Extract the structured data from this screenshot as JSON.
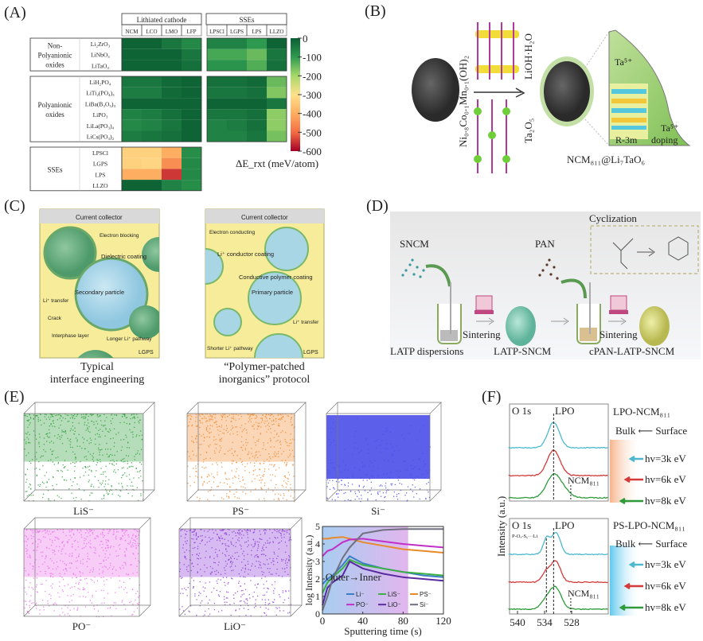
{
  "panels": {
    "A": {
      "label": "(A)",
      "col_groups": [
        "Lithiated cathode",
        "SSEs"
      ],
      "columns": [
        "NCM",
        "LCO",
        "LMO",
        "LFP",
        "LPSCl",
        "LGPS",
        "LPS",
        "LLZO"
      ],
      "row_groups": [
        {
          "name_lines": [
            "Non-",
            "Polyanionic",
            "oxides"
          ],
          "rows": [
            "Li₂ZrO₃",
            "LiNbO₃",
            "LiTaO₃"
          ]
        },
        {
          "name_lines": [
            "Polyanionic",
            "oxides"
          ],
          "rows": [
            "LiH₂PO₄",
            "LiTi₂(PO₄)₃",
            "LiBa(B₃O₅)₃",
            "LiPO₃",
            "LiLa(PO₃)₄",
            "LiCs(PO₃)₂"
          ]
        },
        {
          "name_lines": [
            "SSEs"
          ],
          "rows": [
            "LPSCl",
            "LGPS",
            "LPS",
            "LLZO"
          ]
        }
      ],
      "colorbar_ticks": [
        "0",
        "-100",
        "-200",
        "-300",
        "-400",
        "-500",
        "-600"
      ],
      "colorbar_label": "ΔE_rxt (meV/atom)",
      "colors": [
        "#0b5e33",
        "#2e9a4f",
        "#a6d96a",
        "#fee08b",
        "#fdae61",
        "#f46d43",
        "#a50026"
      ]
    },
    "B": {
      "label": "(B)",
      "precursor": "Ni₀.₈Co₀.₁Mn₀.₁(OH)₂",
      "reagent_top": "LiOH·H₂O",
      "reagent_bottom": "Ta₂O₅",
      "inset_labels": [
        "Ta⁵⁺",
        "R-3m",
        "Ta⁵⁺",
        "doping"
      ],
      "product": "NCM₈₁₁@Li₇TaO₆"
    },
    "C": {
      "label": "(C)",
      "left": {
        "header": "Current collector",
        "labels": [
          "Electron blocking",
          "Dielectric coating",
          "Secondary particle",
          "Li⁺ transfer",
          "Crack",
          "Interphase layer",
          "Longer Li⁺ pathway",
          "LGPS"
        ],
        "caption": [
          "Typical",
          "interface engineering"
        ]
      },
      "right": {
        "header": "Current collector",
        "labels": [
          "Electron conducting",
          "Li⁺ conductor coating",
          "Conductive polymer coating",
          "Primary particle",
          "Li⁺ transfer",
          "Shorter Li⁺ pathway",
          "LGPS"
        ],
        "caption": [
          "“Polymer-patched",
          "inorganics” protocol"
        ]
      }
    },
    "D": {
      "label": "(D)",
      "labels": {
        "sncm": "SNCM",
        "pan": "PAN",
        "cyclization": "Cyclization",
        "sintering1": "Sintering",
        "sintering2": "Sintering",
        "latp_disp": "LATP dispersions",
        "latp_sncm": "LATP-SNCM",
        "cpan": "cPAN-LATP-SNCM"
      }
    },
    "E": {
      "label": "(E)",
      "cubes": [
        {
          "name": "LiS⁻",
          "color": "#2e9e3a"
        },
        {
          "name": "PS⁻",
          "color": "#f08a30"
        },
        {
          "name": "Si⁻",
          "color": "#4a4ee8"
        },
        {
          "name": "PO⁻",
          "color": "#e86ee8"
        },
        {
          "name": "LiO⁻",
          "color": "#8a3ad6"
        }
      ]
    },
    "F": {
      "label": "(F)",
      "ylabel": "Intensity (a.u.)",
      "xticks": [
        "540",
        "534",
        "528"
      ],
      "top": {
        "core": "O 1s",
        "peak": "LPO",
        "peak2": "NCM₈₁₁",
        "sample": "LPO-NCM₈₁₁",
        "direction": "Bulk ⟵ Surface",
        "energies": [
          "hv=3k eV",
          "hv=6k eV",
          "hv=8k eV"
        ]
      },
      "bottom": {
        "core": "O 1s",
        "peak": "LPO",
        "sub_peak": "P-Oₓ-Sᵧ···Li",
        "peak2": "NCM₈₁₁",
        "sample": "PS-LPO-NCM₈₁₁",
        "direction": "Bulk ⟵ Surface",
        "energies": [
          "hv=3k eV",
          "hv=6k eV",
          "hv=8k eV"
        ]
      },
      "trace_colors": [
        "#4fb8cf",
        "#d43a3a",
        "#2e9a3a"
      ]
    }
  },
  "chart_data": [
    {
      "type": "heatmap",
      "title": "",
      "xlabel": "",
      "ylabel": "",
      "colorbar_label": "ΔE_rxt (meV/atom)",
      "zlim": [
        -600,
        0
      ],
      "columns": [
        "NCM",
        "LCO",
        "LMO",
        "LFP",
        "LPSCl",
        "LGPS",
        "LPS",
        "LLZO"
      ],
      "rows": [
        "Li₂ZrO₃",
        "LiNbO₃",
        "LiTaO₃",
        "LiH₂PO₄",
        "LiTi₂(PO₄)₃",
        "LiBa(B₃O₅)₃",
        "LiPO₃",
        "LiLa(PO₃)₄",
        "LiCs(PO₃)₂",
        "LPSCl",
        "LGPS",
        "LPS",
        "LLZO"
      ],
      "values": [
        [
          -10,
          -10,
          -40,
          -70,
          -60,
          -60,
          -100,
          -10
        ],
        [
          -10,
          -10,
          -10,
          -40,
          -120,
          -120,
          -150,
          -40
        ],
        [
          -10,
          -10,
          -10,
          -30,
          -90,
          -90,
          -130,
          -30
        ],
        [
          -40,
          -40,
          -20,
          -10,
          -30,
          -30,
          -20,
          -150
        ],
        [
          -50,
          -50,
          -20,
          -10,
          -40,
          -40,
          -30,
          -170
        ],
        [
          -10,
          -10,
          -10,
          -10,
          -10,
          -10,
          -10,
          -40
        ],
        [
          -60,
          -50,
          -30,
          -10,
          -40,
          -40,
          -30,
          -180
        ],
        [
          -70,
          -60,
          -40,
          -10,
          -60,
          -50,
          -30,
          -180
        ],
        [
          -50,
          -40,
          -30,
          -10,
          -60,
          -60,
          -40,
          -160
        ],
        [
          -330,
          -330,
          -400,
          -80,
          null,
          null,
          null,
          null
        ],
        [
          -330,
          -320,
          -450,
          -70,
          null,
          null,
          null,
          null
        ],
        [
          -400,
          -400,
          -550,
          -70,
          null,
          null,
          null,
          null
        ],
        [
          -10,
          -10,
          -60,
          -80,
          null,
          null,
          null,
          null
        ]
      ]
    },
    {
      "type": "line",
      "title": "",
      "xlabel": "Sputtering time (s)",
      "ylabel": "log Intensity (a.u.)",
      "xlim": [
        0,
        120
      ],
      "ylim": [
        0,
        5
      ],
      "xticks": [
        "0",
        "40",
        "80",
        "120"
      ],
      "yticks": [
        "0",
        "1",
        "2",
        "3",
        "4",
        "5"
      ],
      "annotation": "Outer→Inner",
      "shaded_region": [
        0,
        85
      ],
      "legend_position": "bottom-right",
      "x": [
        0,
        5,
        10,
        20,
        27,
        40,
        60,
        80,
        100,
        120
      ],
      "series": [
        {
          "name": "Li⁻",
          "color": "#3a7ec8",
          "values": [
            1.7,
            2.0,
            2.2,
            2.8,
            3.3,
            2.9,
            2.6,
            2.4,
            2.2,
            2.1
          ]
        },
        {
          "name": "LiS⁻",
          "color": "#3cb043",
          "values": [
            1.2,
            1.8,
            2.1,
            2.6,
            3.1,
            2.8,
            2.6,
            2.4,
            2.3,
            2.2
          ]
        },
        {
          "name": "PS⁻",
          "color": "#e88a2a",
          "values": [
            4.3,
            4.3,
            4.35,
            4.4,
            4.3,
            4.1,
            3.9,
            3.7,
            3.6,
            3.5
          ]
        },
        {
          "name": "PO⁻",
          "color": "#c030c8",
          "values": [
            3.3,
            3.6,
            3.7,
            4.1,
            4.25,
            4.3,
            4.15,
            4.0,
            3.9,
            3.8
          ]
        },
        {
          "name": "LiO⁻",
          "color": "#5a2aa0",
          "values": [
            0.5,
            1.5,
            1.8,
            2.2,
            3.0,
            2.6,
            2.3,
            2.1,
            2.0,
            1.9
          ]
        },
        {
          "name": "Si⁻",
          "color": "#707080",
          "values": [
            0.2,
            1.0,
            2.0,
            3.2,
            3.8,
            4.6,
            4.8,
            4.85,
            4.85,
            4.85
          ]
        }
      ]
    }
  ]
}
